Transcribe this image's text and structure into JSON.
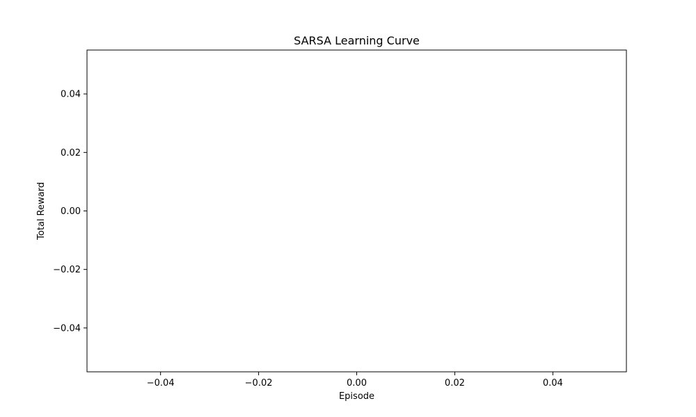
{
  "chart_data": {
    "type": "line",
    "title": "SARSA Learning Curve",
    "xlabel": "Episode",
    "ylabel": "Total Reward",
    "xlim": [
      -0.055,
      0.055
    ],
    "ylim": [
      -0.055,
      0.055
    ],
    "xticks": [
      -0.04,
      -0.02,
      0.0,
      0.02,
      0.04
    ],
    "xtick_labels": [
      "−0.04",
      "−0.02",
      "0.00",
      "0.02",
      "0.04"
    ],
    "yticks": [
      0.04,
      0.02,
      0.0,
      -0.02,
      -0.04
    ],
    "ytick_labels": [
      "0.04",
      "0.02",
      "0.00",
      "−0.02",
      "−0.04"
    ],
    "grid": false,
    "series": [
      {
        "x": [],
        "y": []
      }
    ]
  },
  "colors": {
    "axis": "#000000",
    "background": "#ffffff",
    "line": "#1f77b4"
  }
}
